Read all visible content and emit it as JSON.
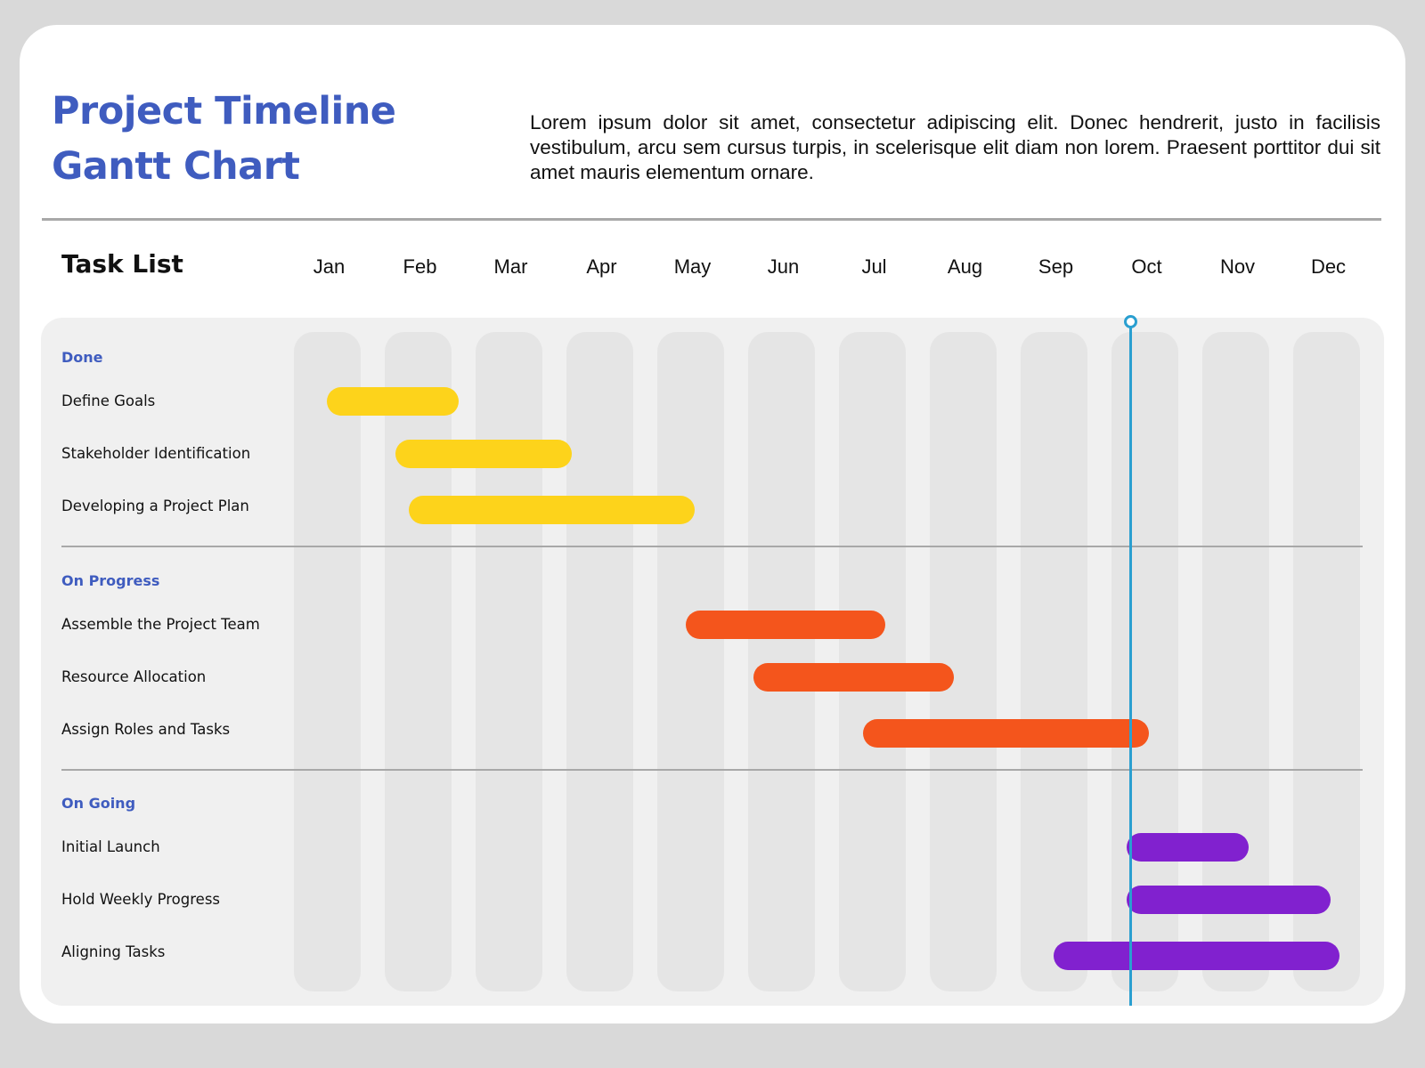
{
  "title": {
    "line1": "Project Timeline",
    "line2": "Gantt Chart"
  },
  "description": "Lorem ipsum dolor sit amet, consectetur adipiscing elit. Donec hendrerit, justo in facilisis vestibulum, arcu sem cursus turpis, in scelerisque elit diam non lorem. Praesent porttitor dui sit amet mauris elementum ornare.",
  "task_list_heading": "Task List",
  "colors": {
    "title": "#3f5cbf",
    "done": "#fdd31b",
    "on_progress": "#f4551c",
    "on_going": "#8121cf",
    "today_marker": "#2a9fd0"
  },
  "chart_data": {
    "type": "gantt",
    "months": [
      "Jan",
      "Feb",
      "Mar",
      "Apr",
      "May",
      "Jun",
      "Jul",
      "Aug",
      "Sep",
      "Oct",
      "Nov",
      "Dec"
    ],
    "today_marker_month": 8.85,
    "groups": [
      {
        "name": "Done",
        "color_key": "done",
        "tasks": [
          {
            "name": "Define Goals",
            "start": 0.0,
            "end": 1.45
          },
          {
            "name": "Stakeholder Identification",
            "start": 0.75,
            "end": 2.7
          },
          {
            "name": "Developing a Project Plan",
            "start": 0.9,
            "end": 4.05
          }
        ]
      },
      {
        "name": "On Progress",
        "color_key": "on_progress",
        "tasks": [
          {
            "name": "Assemble the Project Team",
            "start": 3.95,
            "end": 6.15
          },
          {
            "name": "Resource Allocation",
            "start": 4.7,
            "end": 6.9
          },
          {
            "name": "Assign Roles and Tasks",
            "start": 5.9,
            "end": 9.05
          }
        ]
      },
      {
        "name": "On Going",
        "color_key": "on_going",
        "tasks": [
          {
            "name": "Initial Launch",
            "start": 8.8,
            "end": 10.15
          },
          {
            "name": "Hold Weekly Progress",
            "start": 8.8,
            "end": 11.05
          },
          {
            "name": "Aligning Tasks",
            "start": 8.0,
            "end": 11.15
          }
        ]
      }
    ]
  }
}
